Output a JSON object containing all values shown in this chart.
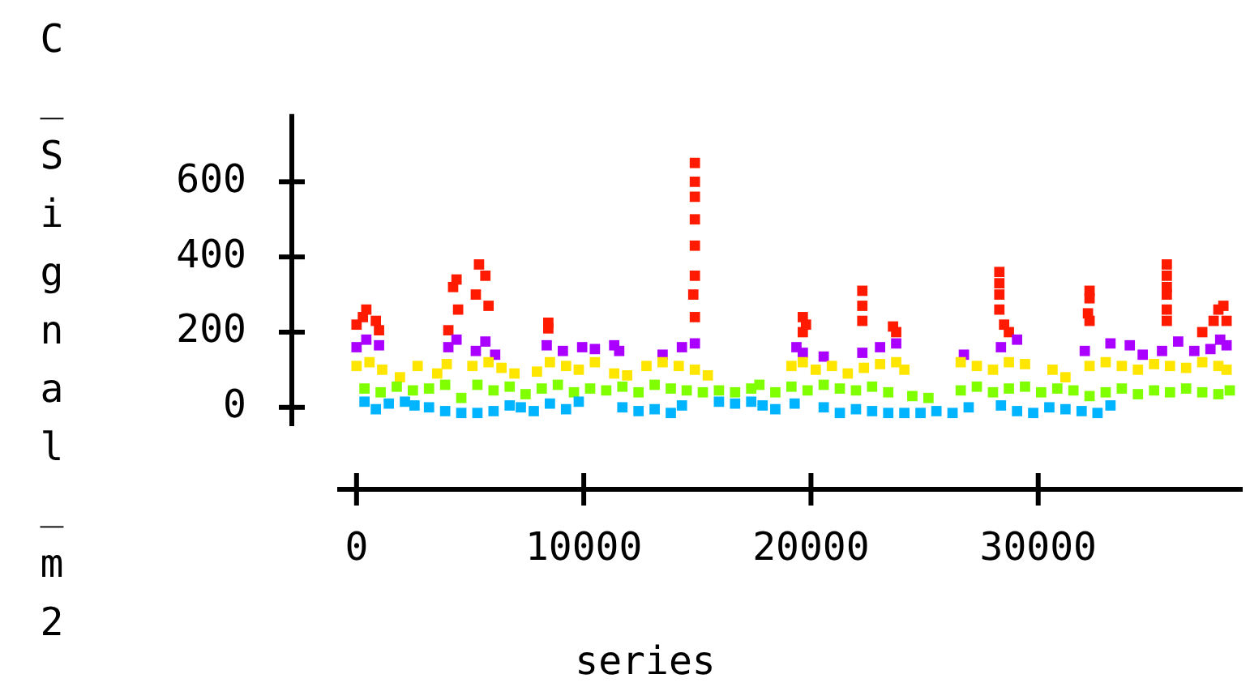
{
  "chart_data": {
    "type": "scatter",
    "xlabel": "series",
    "ylabel": "C_Signal_m2",
    "xlim": [
      -850,
      39000
    ],
    "ylim": [
      -50,
      780
    ],
    "xticks": [
      0,
      10000,
      20000,
      30000
    ],
    "yticks": [
      0,
      200,
      400,
      600
    ],
    "grid": false,
    "legend": false,
    "marker": "square",
    "series": [
      {
        "color": "#00b4ff",
        "x": [
          350,
          850,
          1420,
          2130,
          2550,
          3190,
          3900,
          4610,
          5320,
          6030,
          6740,
          7230,
          7800,
          8510,
          9220,
          9780,
          11700,
          12410,
          13120,
          13830,
          14320,
          15950,
          16660,
          17370,
          17870,
          18430,
          19280,
          20560,
          21270,
          21980,
          22690,
          23400,
          24110,
          24820,
          25520,
          26230,
          26940,
          28360,
          29070,
          29780,
          30490,
          31200,
          31910,
          32610,
          33180
        ],
        "values": [
          15,
          -5,
          10,
          15,
          5,
          0,
          -10,
          -15,
          -15,
          -10,
          5,
          0,
          -10,
          10,
          -5,
          15,
          0,
          -10,
          -5,
          -15,
          5,
          15,
          10,
          15,
          5,
          -5,
          10,
          0,
          -15,
          -5,
          -10,
          -15,
          -15,
          -15,
          -10,
          -15,
          0,
          5,
          -10,
          -15,
          0,
          -5,
          -10,
          -15,
          5
        ]
      },
      {
        "color": "#80ff00",
        "x": [
          350,
          1060,
          1770,
          2480,
          3190,
          3900,
          4610,
          5320,
          6030,
          6740,
          7440,
          8150,
          8860,
          9570,
          10280,
          10990,
          11700,
          12410,
          13120,
          13830,
          14530,
          15240,
          15950,
          16660,
          17370,
          17730,
          18430,
          19140,
          19850,
          20560,
          21270,
          21980,
          22690,
          23400,
          24460,
          25170,
          26590,
          27300,
          28010,
          28710,
          29420,
          30130,
          30840,
          31550,
          32260,
          32970,
          33680,
          34390,
          35100,
          35800,
          36510,
          37220,
          37930,
          38430
        ],
        "values": [
          50,
          40,
          55,
          45,
          50,
          60,
          25,
          60,
          45,
          55,
          35,
          50,
          60,
          40,
          50,
          45,
          55,
          40,
          60,
          50,
          45,
          40,
          45,
          40,
          50,
          60,
          40,
          55,
          45,
          60,
          50,
          45,
          55,
          40,
          30,
          25,
          45,
          55,
          40,
          50,
          55,
          40,
          50,
          45,
          30,
          40,
          50,
          35,
          45,
          40,
          50,
          40,
          35,
          45
        ]
      },
      {
        "color": "#ffe600",
        "x": [
          0,
          570,
          1130,
          1910,
          2690,
          3550,
          3970,
          5100,
          5810,
          6380,
          6950,
          7940,
          8510,
          9220,
          9780,
          10490,
          11340,
          11910,
          12760,
          13470,
          14180,
          14890,
          15460,
          19140,
          19640,
          20210,
          20920,
          21620,
          22330,
          23040,
          23750,
          24110,
          26590,
          27300,
          28010,
          28710,
          29420,
          30630,
          31200,
          32260,
          32970,
          33680,
          34390,
          35100,
          35800,
          36510,
          37220,
          37930,
          38290
        ],
        "values": [
          110,
          120,
          100,
          80,
          110,
          90,
          115,
          110,
          120,
          105,
          90,
          95,
          120,
          110,
          100,
          120,
          90,
          85,
          110,
          120,
          110,
          100,
          85,
          110,
          120,
          100,
          110,
          90,
          105,
          115,
          120,
          100,
          120,
          110,
          100,
          120,
          115,
          100,
          80,
          110,
          120,
          110,
          100,
          115,
          110,
          105,
          120,
          110,
          100
        ]
      },
      {
        "color": "#aa00ff",
        "x": [
          0,
          430,
          990,
          4040,
          4400,
          5250,
          5670,
          6100,
          8370,
          9080,
          9930,
          10490,
          11340,
          11560,
          13470,
          14320,
          14890,
          19360,
          19640,
          20560,
          22260,
          23040,
          23750,
          26730,
          28360,
          29070,
          32050,
          33180,
          34030,
          34600,
          35450,
          36160,
          36870,
          37580,
          38010,
          38290
        ],
        "values": [
          160,
          180,
          165,
          160,
          180,
          150,
          175,
          140,
          165,
          150,
          160,
          155,
          165,
          150,
          140,
          160,
          170,
          160,
          145,
          135,
          145,
          160,
          170,
          140,
          160,
          180,
          150,
          170,
          165,
          140,
          150,
          175,
          150,
          155,
          180,
          165
        ]
      },
      {
        "color": "#ff1a00",
        "x": [
          0,
          280,
          430,
          850,
          990,
          4040,
          4250,
          4470,
          4400,
          5250,
          5390,
          5810,
          5670,
          8440,
          8440,
          14890,
          14890,
          14890,
          14890,
          14890,
          14890,
          14890,
          14820,
          19640,
          19640,
          19780,
          22260,
          22260,
          22260,
          23610,
          23750,
          28290,
          28290,
          28290,
          28290,
          28500,
          28710,
          32260,
          32260,
          32260,
          32190,
          35660,
          35660,
          35660,
          35660,
          35660,
          35660,
          37720,
          37930,
          38150,
          38290,
          37220
        ],
        "values": [
          220,
          240,
          260,
          230,
          205,
          205,
          320,
          260,
          340,
          300,
          380,
          270,
          350,
          210,
          225,
          650,
          600,
          560,
          500,
          430,
          350,
          240,
          300,
          200,
          240,
          220,
          230,
          310,
          270,
          215,
          200,
          360,
          330,
          300,
          260,
          220,
          200,
          230,
          290,
          310,
          250,
          380,
          350,
          320,
          300,
          260,
          230,
          230,
          260,
          270,
          230,
          200
        ]
      }
    ]
  }
}
